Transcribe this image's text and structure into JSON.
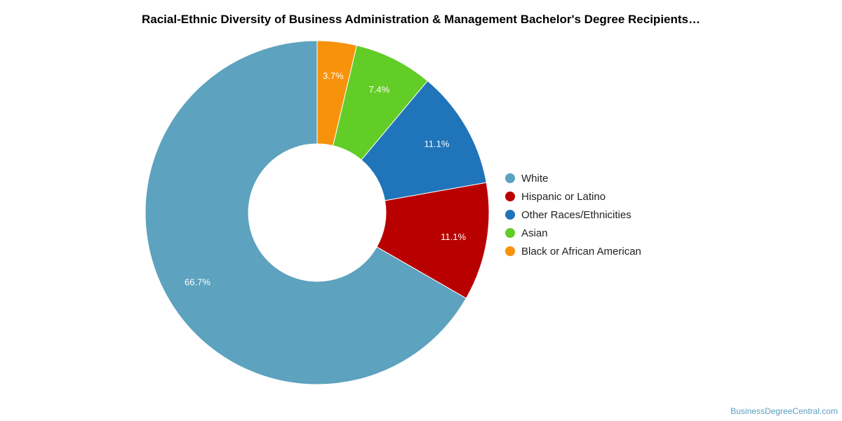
{
  "chart_data": {
    "type": "pie",
    "donut": true,
    "title": "Racial-Ethnic Diversity of Business Administration & Management Bachelor's Degree Recipients…",
    "legend_position": "right",
    "slices": [
      {
        "name": "White",
        "value": 66.7,
        "label": "66.7%",
        "color": "#5da2be"
      },
      {
        "name": "Hispanic or Latino",
        "value": 11.1,
        "label": "11.1%",
        "color": "#b80000"
      },
      {
        "name": "Other Races/Ethnicities",
        "value": 11.1,
        "label": "11.1%",
        "color": "#1f74ba"
      },
      {
        "name": "Asian",
        "value": 7.4,
        "label": "7.4%",
        "color": "#62cd26"
      },
      {
        "name": "Black or African American",
        "value": 3.7,
        "label": "3.7%",
        "color": "#f7920b"
      }
    ]
  },
  "source": "BusinessDegreeCentral.com"
}
